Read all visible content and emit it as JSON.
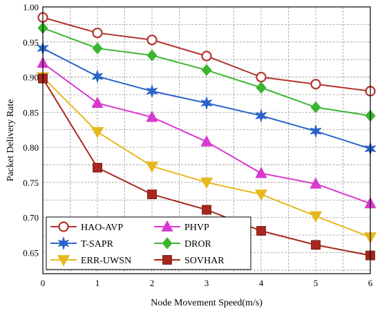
{
  "chart_data": {
    "type": "line",
    "title": "",
    "xlabel": "Node Movement Speed(m/s)",
    "ylabel": "Packet Delivery Rate",
    "x": [
      0,
      1,
      2,
      3,
      4,
      5,
      6
    ],
    "xlim": [
      0,
      6
    ],
    "ylim": [
      0.62,
      1.0
    ],
    "xticks": [
      "0",
      "1",
      "2",
      "3",
      "4",
      "5",
      "6"
    ],
    "yticks": [
      0.65,
      0.7,
      0.75,
      0.8,
      0.85,
      0.9,
      0.95,
      1.0
    ],
    "ytick_labels": [
      "0.65",
      "0.70",
      "0.75",
      "0.80",
      "0.85",
      "0.90",
      "0.95",
      "1.00"
    ],
    "grid": true,
    "legend_position": "bottom-left",
    "series": [
      {
        "name": "HAO-AVP",
        "color": "#b5322b",
        "marker": "circle-open",
        "values": [
          0.985,
          0.963,
          0.953,
          0.93,
          0.9,
          0.89,
          0.88
        ]
      },
      {
        "name": "T-SAPR",
        "color": "#2a63c8",
        "marker": "star",
        "values": [
          0.941,
          0.901,
          0.88,
          0.863,
          0.845,
          0.823,
          0.798
        ]
      },
      {
        "name": "ERR-UWSN",
        "color": "#e6b81e",
        "marker": "triangle-down",
        "values": [
          0.9,
          0.822,
          0.773,
          0.75,
          0.733,
          0.702,
          0.672
        ]
      },
      {
        "name": "PHVP",
        "color": "#d83ad0",
        "marker": "triangle-up",
        "values": [
          0.92,
          0.863,
          0.843,
          0.808,
          0.763,
          0.748,
          0.72
        ]
      },
      {
        "name": "DROR",
        "color": "#3bb530",
        "marker": "diamond",
        "values": [
          0.97,
          0.941,
          0.931,
          0.91,
          0.885,
          0.857,
          0.845
        ]
      },
      {
        "name": "SOVHAR",
        "color": "#a8261c",
        "marker": "square",
        "values": [
          0.898,
          0.771,
          0.733,
          0.711,
          0.681,
          0.661,
          0.646
        ]
      }
    ]
  }
}
